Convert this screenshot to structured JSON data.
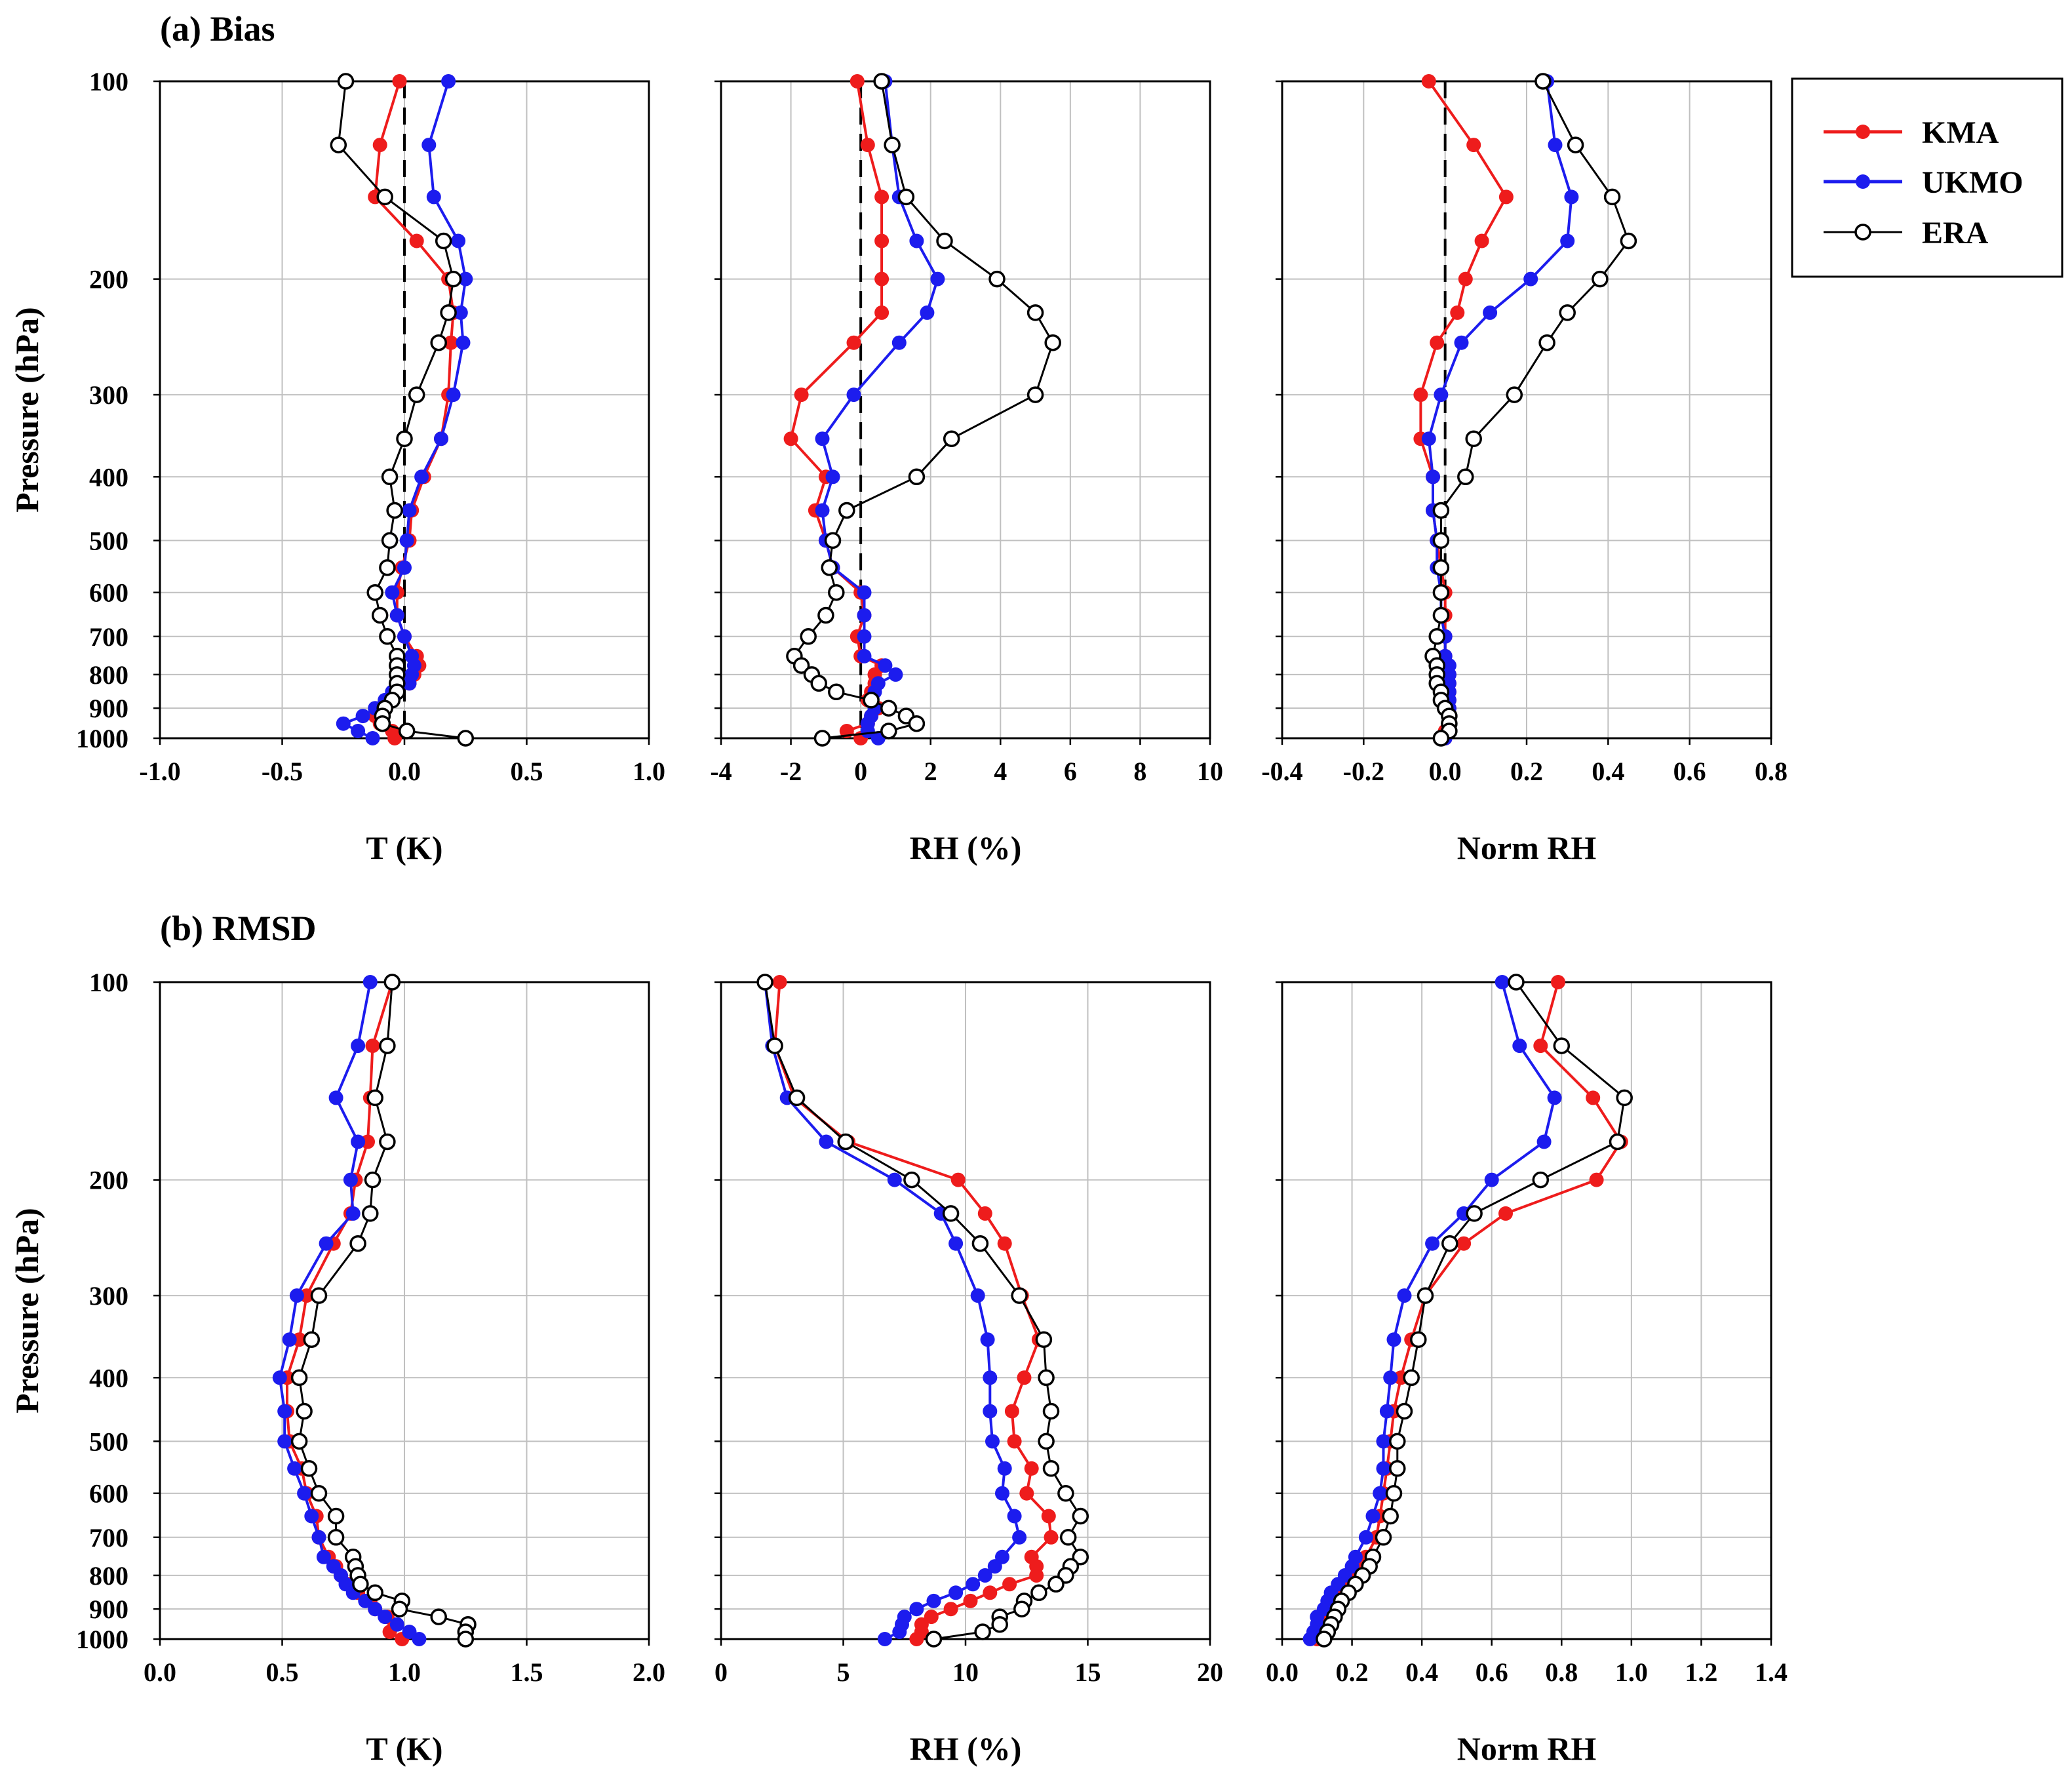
{
  "chart_data": {
    "type": "line",
    "legend": {
      "position": "top-right",
      "entries": [
        {
          "name": "KMA",
          "color": "#ee1c1c",
          "marker": "filled-circle"
        },
        {
          "name": "UKMO",
          "color": "#1c1cee",
          "marker": "filled-circle"
        },
        {
          "name": "ERA",
          "color": "#000000",
          "marker": "open-circle"
        }
      ]
    },
    "ylabel": "Pressure (hPa)",
    "y_scale": "log-reversed",
    "ylim": [
      100,
      1000
    ],
    "yticks": [
      100,
      200,
      300,
      400,
      500,
      600,
      700,
      800,
      900,
      1000
    ],
    "levels": [
      100,
      125,
      150,
      175,
      200,
      225,
      250,
      300,
      350,
      400,
      450,
      500,
      550,
      600,
      650,
      700,
      750,
      775,
      800,
      825,
      850,
      875,
      900,
      925,
      950,
      975,
      1000
    ],
    "rows": [
      {
        "title": "(a) Bias",
        "panels": [
          {
            "xlabel": "T (K)",
            "xlim": [
              -1.0,
              1.0
            ],
            "xticks": [
              "-1.0",
              "-0.5",
              "0.0",
              "0.5",
              "1.0"
            ],
            "zero_line": true,
            "series": [
              {
                "name": "KMA",
                "values": [
                  -0.02,
                  -0.1,
                  -0.12,
                  0.05,
                  0.18,
                  0.2,
                  0.19,
                  0.18,
                  0.15,
                  0.08,
                  0.03,
                  0.02,
                  -0.01,
                  -0.03,
                  -0.03,
                  0.0,
                  0.05,
                  0.06,
                  0.04,
                  0.02,
                  -0.03,
                  -0.06,
                  -0.1,
                  -0.12,
                  -0.1,
                  -0.05,
                  -0.04
                ]
              },
              {
                "name": "UKMO",
                "values": [
                  0.18,
                  0.1,
                  0.12,
                  0.22,
                  0.25,
                  0.23,
                  0.24,
                  0.2,
                  0.15,
                  0.07,
                  0.02,
                  0.01,
                  0.0,
                  -0.05,
                  -0.03,
                  0.0,
                  0.03,
                  0.04,
                  0.03,
                  0.02,
                  -0.05,
                  -0.08,
                  -0.12,
                  -0.17,
                  -0.25,
                  -0.19,
                  -0.13
                ]
              },
              {
                "name": "ERA",
                "values": [
                  -0.24,
                  -0.27,
                  -0.08,
                  0.16,
                  0.2,
                  0.18,
                  0.14,
                  0.05,
                  0.0,
                  -0.06,
                  -0.04,
                  -0.06,
                  -0.07,
                  -0.12,
                  -0.1,
                  -0.07,
                  -0.03,
                  -0.03,
                  -0.03,
                  -0.03,
                  -0.03,
                  -0.05,
                  -0.08,
                  -0.09,
                  -0.09,
                  0.01,
                  0.25
                ]
              }
            ]
          },
          {
            "xlabel": "RH (%)",
            "xlim": [
              -4,
              10
            ],
            "xticks": [
              "-4",
              "-2",
              "0",
              "2",
              "4",
              "6",
              "8",
              "10"
            ],
            "zero_line": true,
            "series": [
              {
                "name": "KMA",
                "values": [
                  -0.1,
                  0.2,
                  0.6,
                  0.6,
                  0.6,
                  0.6,
                  -0.2,
                  -1.7,
                  -2.0,
                  -1.0,
                  -1.3,
                  -1.0,
                  -0.8,
                  0.0,
                  0.1,
                  -0.1,
                  0.0,
                  0.6,
                  0.4,
                  0.4,
                  0.3,
                  0.2,
                  0.5,
                  0.3,
                  0.2,
                  -0.4,
                  0.0
                ]
              },
              {
                "name": "UKMO",
                "values": [
                  0.7,
                  0.9,
                  1.1,
                  1.6,
                  2.2,
                  1.9,
                  1.1,
                  -0.2,
                  -1.1,
                  -0.8,
                  -1.1,
                  -1.0,
                  -0.8,
                  0.1,
                  0.1,
                  0.1,
                  0.1,
                  0.7,
                  1.0,
                  0.5,
                  0.4,
                  0.3,
                  0.4,
                  0.3,
                  0.2,
                  0.2,
                  0.5
                ]
              },
              {
                "name": "ERA",
                "values": [
                  0.6,
                  0.9,
                  1.3,
                  2.4,
                  3.9,
                  5.0,
                  5.5,
                  5.0,
                  2.6,
                  1.6,
                  -0.4,
                  -0.8,
                  -0.9,
                  -0.7,
                  -1.0,
                  -1.5,
                  -1.9,
                  -1.7,
                  -1.4,
                  -1.2,
                  -0.7,
                  0.3,
                  0.8,
                  1.3,
                  1.6,
                  0.8,
                  -1.1
                ]
              }
            ]
          },
          {
            "xlabel": "Norm RH",
            "xlim": [
              -0.4,
              0.8
            ],
            "xticks": [
              "-0.4",
              "-0.2",
              "0.0",
              "0.2",
              "0.4",
              "0.6",
              "0.8"
            ],
            "zero_line": true,
            "series": [
              {
                "name": "KMA",
                "values": [
                  -0.04,
                  0.07,
                  0.15,
                  0.09,
                  0.05,
                  0.03,
                  -0.02,
                  -0.06,
                  -0.06,
                  -0.03,
                  -0.03,
                  -0.02,
                  -0.01,
                  0.0,
                  0.0,
                  0.0,
                  0.0,
                  0.0,
                  0.01,
                  0.01,
                  0.01,
                  0.01,
                  0.01,
                  0.01,
                  0.01,
                  0.0,
                  0.0
                ]
              },
              {
                "name": "UKMO",
                "values": [
                  0.25,
                  0.27,
                  0.31,
                  0.3,
                  0.21,
                  0.11,
                  0.04,
                  -0.01,
                  -0.04,
                  -0.03,
                  -0.03,
                  -0.02,
                  -0.02,
                  -0.01,
                  -0.01,
                  0.0,
                  0.0,
                  0.01,
                  0.01,
                  0.01,
                  0.01,
                  0.01,
                  0.01,
                  0.01,
                  0.01,
                  0.01,
                  0.0
                ]
              },
              {
                "name": "ERA",
                "values": [
                  0.24,
                  0.32,
                  0.41,
                  0.45,
                  0.38,
                  0.3,
                  0.25,
                  0.17,
                  0.07,
                  0.05,
                  -0.01,
                  -0.01,
                  -0.01,
                  -0.01,
                  -0.01,
                  -0.02,
                  -0.03,
                  -0.02,
                  -0.02,
                  -0.02,
                  -0.01,
                  -0.01,
                  0.0,
                  0.01,
                  0.01,
                  0.01,
                  -0.01
                ]
              }
            ]
          }
        ]
      },
      {
        "title": "(b) RMSD",
        "panels": [
          {
            "xlabel": "T (K)",
            "xlim": [
              0.0,
              2.0
            ],
            "xticks": [
              "0.0",
              "0.5",
              "1.0",
              "1.5",
              "2.0"
            ],
            "zero_line": false,
            "series": [
              {
                "name": "KMA",
                "values": [
                  0.95,
                  0.87,
                  0.86,
                  0.85,
                  0.8,
                  0.78,
                  0.71,
                  0.6,
                  0.57,
                  0.52,
                  0.52,
                  0.53,
                  0.58,
                  0.6,
                  0.64,
                  0.65,
                  0.69,
                  0.72,
                  0.74,
                  0.77,
                  0.81,
                  0.86,
                  0.88,
                  0.93,
                  0.96,
                  0.94,
                  0.99
                ]
              },
              {
                "name": "UKMO",
                "values": [
                  0.86,
                  0.81,
                  0.72,
                  0.81,
                  0.78,
                  0.79,
                  0.68,
                  0.56,
                  0.53,
                  0.49,
                  0.51,
                  0.51,
                  0.55,
                  0.59,
                  0.62,
                  0.65,
                  0.67,
                  0.71,
                  0.74,
                  0.76,
                  0.79,
                  0.84,
                  0.88,
                  0.92,
                  0.97,
                  1.02,
                  1.06
                ]
              },
              {
                "name": "ERA",
                "values": [
                  0.95,
                  0.93,
                  0.88,
                  0.93,
                  0.87,
                  0.86,
                  0.81,
                  0.65,
                  0.62,
                  0.57,
                  0.59,
                  0.57,
                  0.61,
                  0.65,
                  0.72,
                  0.72,
                  0.79,
                  0.8,
                  0.81,
                  0.82,
                  0.88,
                  0.99,
                  0.98,
                  1.14,
                  1.26,
                  1.25,
                  1.25
                ]
              }
            ]
          },
          {
            "xlabel": "RH (%)",
            "xlim": [
              0,
              20
            ],
            "xticks": [
              "0",
              "5",
              "10",
              "15",
              "20"
            ],
            "zero_line": false,
            "series": [
              {
                "name": "KMA",
                "values": [
                  2.4,
                  2.2,
                  3.0,
                  5.2,
                  9.7,
                  10.8,
                  11.6,
                  12.3,
                  13.0,
                  12.4,
                  11.9,
                  12.0,
                  12.7,
                  12.5,
                  13.4,
                  13.5,
                  12.7,
                  12.9,
                  12.9,
                  11.8,
                  11.0,
                  10.2,
                  9.4,
                  8.6,
                  8.2,
                  8.2,
                  8.0
                ]
              },
              {
                "name": "UKMO",
                "values": [
                  1.8,
                  2.1,
                  2.7,
                  4.3,
                  7.1,
                  9.0,
                  9.6,
                  10.5,
                  10.9,
                  11.0,
                  11.0,
                  11.1,
                  11.6,
                  11.5,
                  12.0,
                  12.2,
                  11.5,
                  11.2,
                  10.8,
                  10.3,
                  9.6,
                  8.7,
                  8.0,
                  7.5,
                  7.4,
                  7.3,
                  6.7
                ]
              },
              {
                "name": "ERA",
                "values": [
                  1.8,
                  2.2,
                  3.1,
                  5.1,
                  7.8,
                  9.4,
                  10.6,
                  12.2,
                  13.2,
                  13.3,
                  13.5,
                  13.3,
                  13.5,
                  14.1,
                  14.7,
                  14.2,
                  14.7,
                  14.3,
                  14.1,
                  13.7,
                  13.0,
                  12.4,
                  12.3,
                  11.4,
                  11.4,
                  10.7,
                  8.7
                ]
              }
            ]
          },
          {
            "xlabel": "Norm RH",
            "xlim": [
              0.0,
              1.4
            ],
            "xticks": [
              "0.0",
              "0.2",
              "0.4",
              "0.6",
              "0.8",
              "1.0",
              "1.2",
              "1.4"
            ],
            "zero_line": false,
            "series": [
              {
                "name": "KMA",
                "values": [
                  0.79,
                  0.74,
                  0.89,
                  0.97,
                  0.9,
                  0.64,
                  0.52,
                  0.41,
                  0.37,
                  0.34,
                  0.32,
                  0.31,
                  0.3,
                  0.29,
                  0.28,
                  0.27,
                  0.24,
                  0.22,
                  0.2,
                  0.18,
                  0.16,
                  0.15,
                  0.14,
                  0.13,
                  0.12,
                  0.11,
                  0.1
                ]
              },
              {
                "name": "UKMO",
                "values": [
                  0.63,
                  0.68,
                  0.78,
                  0.75,
                  0.6,
                  0.52,
                  0.43,
                  0.35,
                  0.32,
                  0.31,
                  0.3,
                  0.29,
                  0.29,
                  0.28,
                  0.26,
                  0.24,
                  0.21,
                  0.2,
                  0.18,
                  0.16,
                  0.14,
                  0.13,
                  0.12,
                  0.1,
                  0.1,
                  0.09,
                  0.08
                ]
              },
              {
                "name": "ERA",
                "values": [
                  0.67,
                  0.8,
                  0.98,
                  0.96,
                  0.74,
                  0.55,
                  0.48,
                  0.41,
                  0.39,
                  0.37,
                  0.35,
                  0.33,
                  0.33,
                  0.32,
                  0.31,
                  0.29,
                  0.26,
                  0.25,
                  0.23,
                  0.21,
                  0.19,
                  0.17,
                  0.16,
                  0.15,
                  0.14,
                  0.13,
                  0.12
                ]
              }
            ]
          }
        ]
      }
    ]
  }
}
